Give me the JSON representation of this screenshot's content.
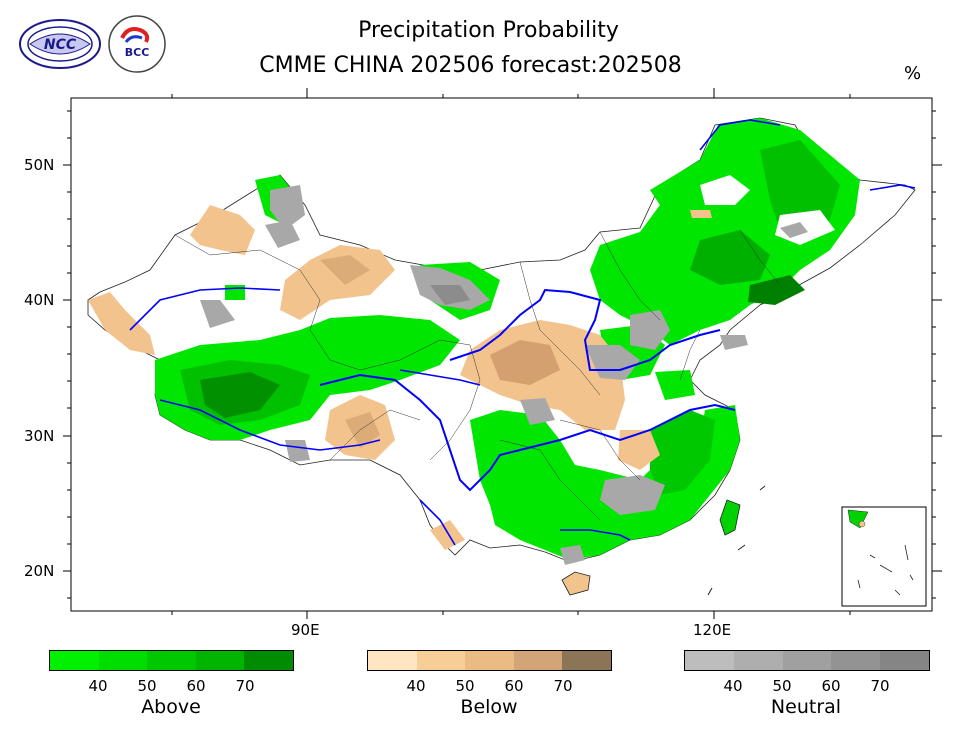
{
  "header": {
    "title": "Precipitation Probability",
    "subtitle": "CMME CHINA 202506 forecast:202508",
    "unit": "%"
  },
  "logos": {
    "ncc_text": "NCC",
    "bcc_text": "BCC"
  },
  "map": {
    "lat_labels": [
      "50N",
      "40N",
      "30N",
      "20N"
    ],
    "lon_labels": [
      "90E",
      "120E"
    ],
    "colors": {
      "river": "#0000ff",
      "boundary": "#333333",
      "above": "#00e000",
      "below": "#f2c38c",
      "neutral": "#a8a8a8"
    }
  },
  "legend": {
    "above": {
      "title": "Above",
      "ticks": [
        "40",
        "50",
        "60",
        "70"
      ],
      "colors": [
        "#00f000",
        "#00dd00",
        "#00c800",
        "#00b400",
        "#008c00"
      ]
    },
    "below": {
      "title": "Below",
      "ticks": [
        "40",
        "50",
        "60",
        "70"
      ],
      "colors": [
        "#ffe5c0",
        "#f7cd98",
        "#ebbb84",
        "#d2a478",
        "#8c7456"
      ]
    },
    "neutral": {
      "title": "Neutral",
      "ticks": [
        "40",
        "50",
        "60",
        "70"
      ],
      "colors": [
        "#bdbdbd",
        "#aeaeae",
        "#a0a0a0",
        "#939393",
        "#858585"
      ]
    }
  }
}
